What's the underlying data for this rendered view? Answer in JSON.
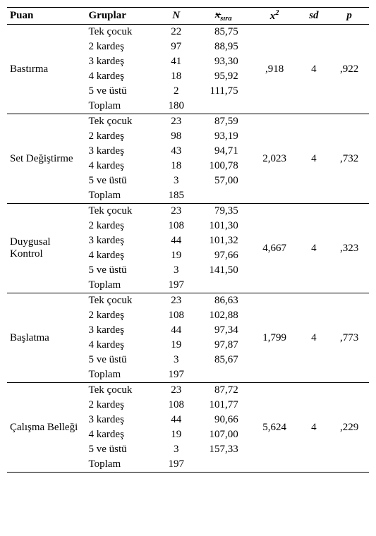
{
  "headers": {
    "puan": "Puan",
    "gruplar": "Gruplar",
    "n": "N",
    "xsira_html": "<span style=\"position:relative;\"><span style=\"position:absolute;left:2px;top:-6px;\">_</span>x</span><sub><i>sıra</i></sub>",
    "x2_html": "x<sup>2</sup>",
    "sd": "sd",
    "p": "p"
  },
  "group_labels": [
    "Tek çocuk",
    "2 kardeş",
    "3 kardeş",
    "4 kardeş",
    "5 ve üstü",
    "Toplam"
  ],
  "sections": [
    {
      "puan": "Bastırma",
      "rows": [
        {
          "n": "22",
          "sira": "85,75"
        },
        {
          "n": "97",
          "sira": "88,95"
        },
        {
          "n": "41",
          "sira": "93,30"
        },
        {
          "n": "18",
          "sira": "95,92"
        },
        {
          "n": "2",
          "sira": "111,75"
        },
        {
          "n": "180",
          "sira": ""
        }
      ],
      "x2": ",918",
      "sd": "4",
      "p": ",922"
    },
    {
      "puan": "Set Değiştirme",
      "rows": [
        {
          "n": "23",
          "sira": "87,59"
        },
        {
          "n": "98",
          "sira": "93,19"
        },
        {
          "n": "43",
          "sira": "94,71"
        },
        {
          "n": "18",
          "sira": "100,78"
        },
        {
          "n": "3",
          "sira": "57,00"
        },
        {
          "n": "185",
          "sira": ""
        }
      ],
      "x2": "2,023",
      "sd": "4",
      "p": ",732"
    },
    {
      "puan": "Duygusal Kontrol",
      "rows": [
        {
          "n": "23",
          "sira": "79,35"
        },
        {
          "n": "108",
          "sira": "101,30"
        },
        {
          "n": "44",
          "sira": "101,32"
        },
        {
          "n": "19",
          "sira": "97,66"
        },
        {
          "n": "3",
          "sira": "141,50"
        },
        {
          "n": "197",
          "sira": ""
        }
      ],
      "x2": "4,667",
      "sd": "4",
      "p": ",323"
    },
    {
      "puan": "Başlatma",
      "rows": [
        {
          "n": "23",
          "sira": "86,63"
        },
        {
          "n": "108",
          "sira": "102,88"
        },
        {
          "n": "44",
          "sira": "97,34"
        },
        {
          "n": "19",
          "sira": "97,87"
        },
        {
          "n": "3",
          "sira": "85,67"
        },
        {
          "n": "197",
          "sira": ""
        }
      ],
      "x2": "1,799",
      "sd": "4",
      "p": ",773"
    },
    {
      "puan": "Çalışma Belleği",
      "rows": [
        {
          "n": "23",
          "sira": "87,72"
        },
        {
          "n": "108",
          "sira": "101,77"
        },
        {
          "n": "44",
          "sira": "90,66"
        },
        {
          "n": "19",
          "sira": "107,00"
        },
        {
          "n": "3",
          "sira": "157,33"
        },
        {
          "n": "197",
          "sira": ""
        }
      ],
      "x2": "5,624",
      "sd": "4",
      "p": ",229"
    }
  ]
}
